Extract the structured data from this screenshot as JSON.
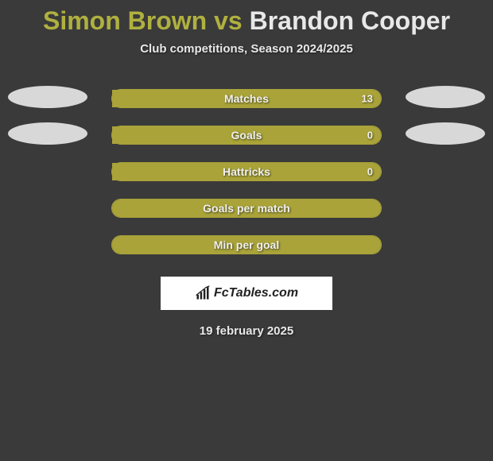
{
  "title": {
    "player1": "Simon Brown",
    "vs": "vs",
    "player2": "Brandon Cooper"
  },
  "subtitle": "Club competitions, Season 2024/2025",
  "colors": {
    "player1": "#a9a339",
    "player2": "#d8d8d8",
    "track_border": "#a9a339",
    "background": "#3a3a3a",
    "brand_bg": "#ffffff"
  },
  "stats": [
    {
      "label": "Matches",
      "left_value": "",
      "right_value": "13",
      "left_pct": 0,
      "right_pct": 100,
      "show_left_photo": true,
      "show_right_photo": true
    },
    {
      "label": "Goals",
      "left_value": "",
      "right_value": "0",
      "left_pct": 0,
      "right_pct": 100,
      "show_left_photo": true,
      "show_right_photo": true
    },
    {
      "label": "Hattricks",
      "left_value": "",
      "right_value": "0",
      "left_pct": 0,
      "right_pct": 100,
      "show_left_photo": false,
      "show_right_photo": false
    },
    {
      "label": "Goals per match",
      "left_value": "",
      "right_value": "",
      "left_pct": 100,
      "right_pct": 0,
      "show_left_photo": false,
      "show_right_photo": false,
      "full_fill": "left"
    },
    {
      "label": "Min per goal",
      "left_value": "",
      "right_value": "",
      "left_pct": 100,
      "right_pct": 0,
      "show_left_photo": false,
      "show_right_photo": false,
      "full_fill": "left"
    }
  ],
  "brand": "FcTables.com",
  "date": "19 february 2025"
}
